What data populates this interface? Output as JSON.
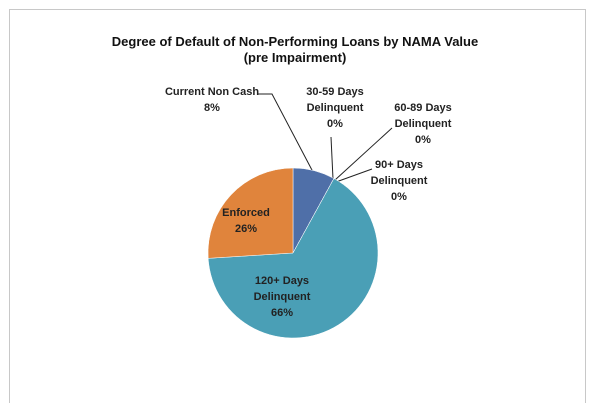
{
  "chart_data": {
    "type": "pie",
    "title": "Degree of Default of Non-Performing Loans by NAMA Value",
    "subtitle": "(pre Impairment)",
    "categories": [
      "Current Non Cash",
      "30-59 Days Delinquent",
      "60-89 Days Delinquent",
      "90+ Days Delinquent",
      "120+ Days Delinquent",
      "Enforced"
    ],
    "values": [
      8,
      0,
      0,
      0,
      66,
      26
    ],
    "value_labels": [
      "8%",
      "0%",
      "0%",
      "0%",
      "66%",
      "26%"
    ],
    "colors": [
      "#4f6fa8",
      "#c0504d",
      "#9bbb59",
      "#8064a2",
      "#4a9fb6",
      "#e0843c"
    ]
  }
}
